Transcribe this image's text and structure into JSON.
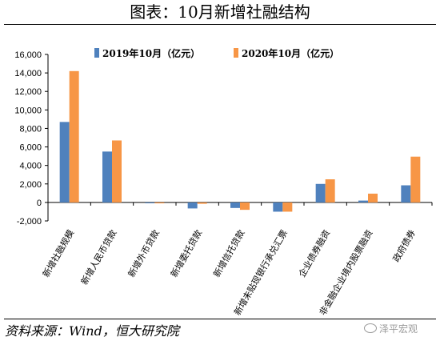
{
  "header": {
    "title": "图表：10月新增社融结构"
  },
  "footer": {
    "source": "资料来源：Wind，恒大研究院",
    "watermark": "泽平宏观"
  },
  "colors": {
    "series1": "#4F81BD",
    "series2": "#F79646"
  },
  "chart_data": {
    "type": "bar",
    "categories": [
      "新增社融规模",
      "新增人民币贷款",
      "新增外币贷款",
      "新增委托贷款",
      "新增信托贷款",
      "新增未贴现银行承兑汇票",
      "企业债券融资",
      "非金融企业境内股票融资",
      "政府债券"
    ],
    "series": [
      {
        "name": "2019年10月（亿元）",
        "values": [
          8700,
          5500,
          -30,
          -650,
          -600,
          -1000,
          2000,
          200,
          1850
        ]
      },
      {
        "name": "2020年10月（亿元）",
        "values": [
          14200,
          6700,
          -100,
          -150,
          -800,
          -1000,
          2500,
          950,
          4950
        ]
      }
    ],
    "ylim": [
      -2000,
      16000
    ],
    "yticks": [
      "-2,000",
      "0",
      "2,000",
      "4,000",
      "6,000",
      "8,000",
      "10,000",
      "12,000",
      "14,000",
      "16,000"
    ],
    "legend_position": "top",
    "grid": false
  }
}
